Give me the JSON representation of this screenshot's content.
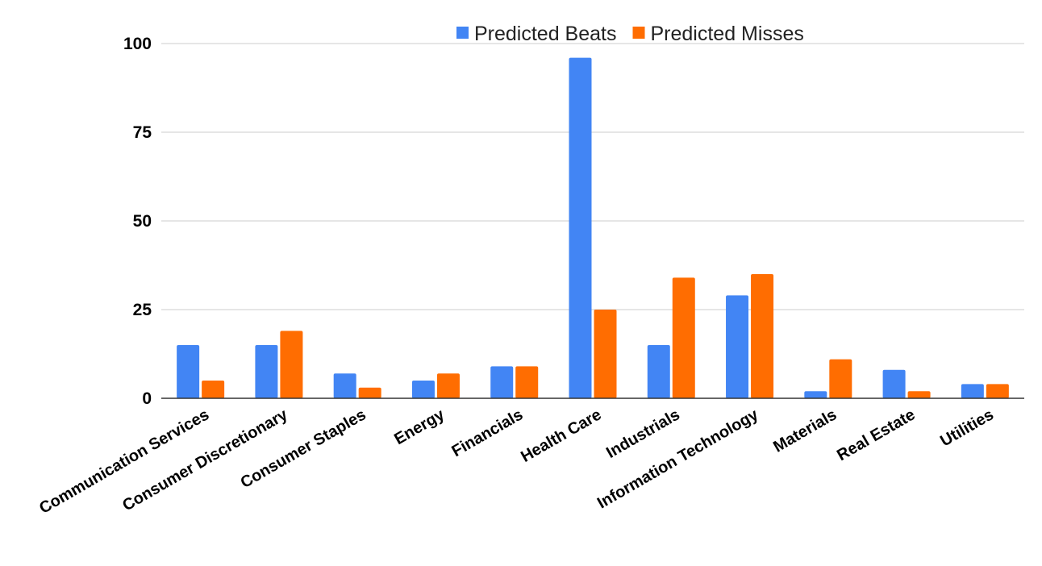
{
  "chart_data": {
    "type": "bar",
    "title": "",
    "xlabel": "",
    "ylabel": "",
    "ylim": [
      0,
      100
    ],
    "yticks": [
      0,
      25,
      50,
      75,
      100
    ],
    "grid": true,
    "legend_position": "top",
    "categories": [
      "Communication Services",
      "Consumer Discretionary",
      "Consumer Staples",
      "Energy",
      "Financials",
      "Health Care",
      "Industrials",
      "Information Technology",
      "Materials",
      "Real Estate",
      "Utilities"
    ],
    "series": [
      {
        "name": "Predicted Beats",
        "color": "#4285F4",
        "values": [
          15,
          15,
          7,
          5,
          9,
          96,
          15,
          29,
          2,
          8,
          4
        ]
      },
      {
        "name": "Predicted Misses",
        "color": "#FF6D01",
        "values": [
          5,
          19,
          3,
          7,
          9,
          25,
          34,
          35,
          11,
          2,
          4
        ]
      }
    ]
  }
}
